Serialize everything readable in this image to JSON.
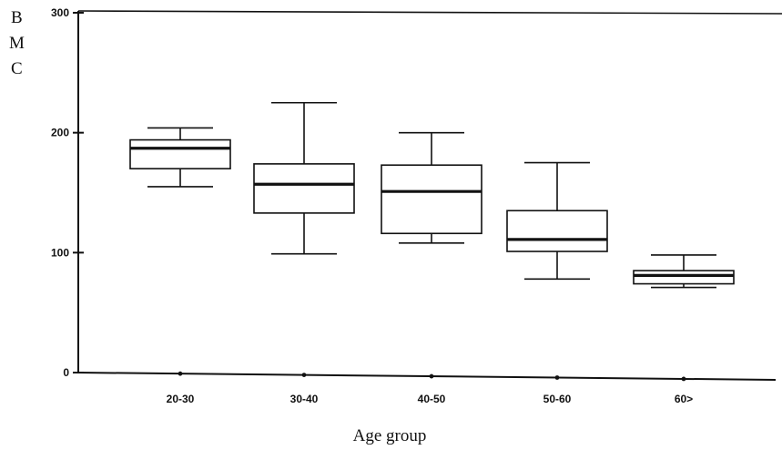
{
  "chart_data": {
    "type": "box",
    "title": "",
    "ylabel": "BMC",
    "xlabel": "Age group",
    "ylim": [
      0,
      300
    ],
    "yticks": [
      "0",
      "100",
      "200",
      "300"
    ],
    "grid": false,
    "categories": [
      "20-30",
      "30-40",
      "40-50",
      "50-60",
      "60>"
    ],
    "boxes": [
      {
        "category": "20-30",
        "min": 155,
        "q1": 170,
        "median": 187,
        "q3": 194,
        "max": 204
      },
      {
        "category": "30-40",
        "min": 99,
        "q1": 133,
        "median": 157,
        "q3": 174,
        "max": 225
      },
      {
        "category": "40-50",
        "min": 108,
        "q1": 116,
        "median": 151,
        "q3": 173,
        "max": 200
      },
      {
        "category": "50-60",
        "min": 78,
        "q1": 101,
        "median": 111,
        "q3": 135,
        "max": 175
      },
      {
        "category": "60>",
        "min": 71,
        "q1": 74,
        "median": 81,
        "q3": 85,
        "max": 98
      }
    ]
  }
}
